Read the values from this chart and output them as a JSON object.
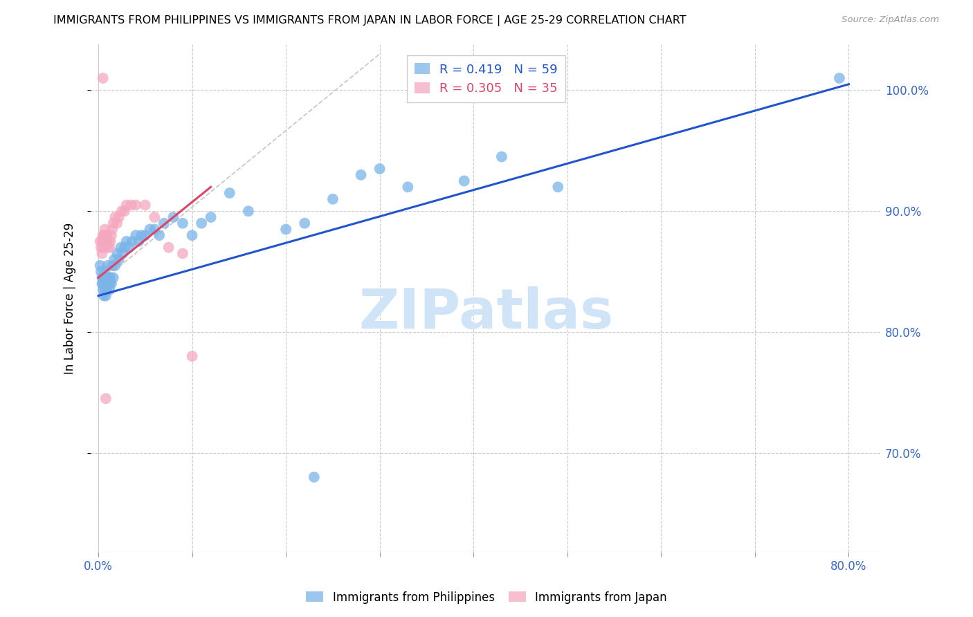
{
  "title": "IMMIGRANTS FROM PHILIPPINES VS IMMIGRANTS FROM JAPAN IN LABOR FORCE | AGE 25-29 CORRELATION CHART",
  "source": "Source: ZipAtlas.com",
  "ylabel_left": "In Labor Force | Age 25-29",
  "xlim": [
    -0.008,
    0.835
  ],
  "ylim": [
    0.618,
    1.038
  ],
  "philippines_R": 0.419,
  "philippines_N": 59,
  "japan_R": 0.305,
  "japan_N": 35,
  "philippines_color": "#7ab4e8",
  "japan_color": "#f4a8c0",
  "philippines_line_color": "#2255cc",
  "japan_line_color": "#dd4466",
  "watermark": "ZIPatlas",
  "watermark_color": "#d0e4f8",
  "grid_color": "#cccccc",
  "phil_line_x0": 0.0,
  "phil_line_y0": 0.83,
  "phil_line_x1": 0.8,
  "phil_line_y1": 1.005,
  "japan_line_x0": 0.0,
  "japan_line_y0": 0.845,
  "japan_line_x1": 0.12,
  "japan_line_y1": 0.92,
  "ref_line_x0": 0.0,
  "ref_line_y0": 0.84,
  "ref_line_x1": 0.3,
  "ref_line_y1": 1.03,
  "philippines_x": [
    0.002,
    0.003,
    0.004,
    0.004,
    0.005,
    0.005,
    0.006,
    0.006,
    0.007,
    0.007,
    0.008,
    0.008,
    0.009,
    0.009,
    0.01,
    0.01,
    0.011,
    0.012,
    0.012,
    0.013,
    0.014,
    0.015,
    0.016,
    0.017,
    0.018,
    0.02,
    0.022,
    0.024,
    0.026,
    0.028,
    0.03,
    0.033,
    0.036,
    0.04,
    0.043,
    0.046,
    0.05,
    0.055,
    0.06,
    0.065,
    0.07,
    0.08,
    0.09,
    0.1,
    0.11,
    0.12,
    0.14,
    0.16,
    0.2,
    0.22,
    0.25,
    0.28,
    0.3,
    0.33,
    0.39,
    0.43,
    0.49,
    0.79,
    0.23
  ],
  "philippines_y": [
    0.855,
    0.85,
    0.845,
    0.84,
    0.84,
    0.835,
    0.845,
    0.83,
    0.85,
    0.835,
    0.845,
    0.83,
    0.84,
    0.835,
    0.855,
    0.84,
    0.845,
    0.84,
    0.835,
    0.845,
    0.84,
    0.855,
    0.845,
    0.86,
    0.855,
    0.865,
    0.86,
    0.87,
    0.865,
    0.87,
    0.875,
    0.87,
    0.875,
    0.88,
    0.875,
    0.88,
    0.88,
    0.885,
    0.885,
    0.88,
    0.89,
    0.895,
    0.89,
    0.88,
    0.89,
    0.895,
    0.915,
    0.9,
    0.885,
    0.89,
    0.91,
    0.93,
    0.935,
    0.92,
    0.925,
    0.945,
    0.92,
    1.01,
    0.68
  ],
  "japan_x": [
    0.002,
    0.003,
    0.004,
    0.004,
    0.005,
    0.005,
    0.006,
    0.006,
    0.007,
    0.007,
    0.008,
    0.008,
    0.009,
    0.01,
    0.011,
    0.012,
    0.013,
    0.014,
    0.015,
    0.016,
    0.018,
    0.02,
    0.022,
    0.025,
    0.028,
    0.03,
    0.035,
    0.04,
    0.05,
    0.06,
    0.075,
    0.09,
    0.1,
    0.005,
    0.008
  ],
  "japan_y": [
    0.875,
    0.87,
    0.865,
    0.875,
    0.88,
    0.87,
    0.875,
    0.88,
    0.885,
    0.875,
    0.88,
    0.875,
    0.88,
    0.87,
    0.875,
    0.87,
    0.875,
    0.88,
    0.885,
    0.89,
    0.895,
    0.89,
    0.895,
    0.9,
    0.9,
    0.905,
    0.905,
    0.905,
    0.905,
    0.895,
    0.87,
    0.865,
    0.78,
    1.01,
    0.745
  ]
}
